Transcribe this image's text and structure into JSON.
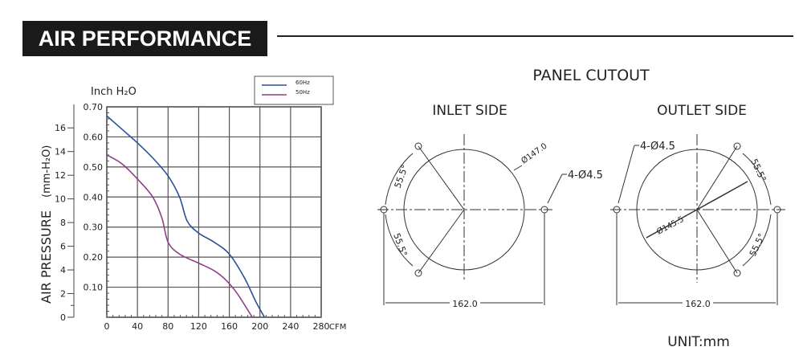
{
  "header": {
    "title": "AIR PERFORMANCE"
  },
  "chart_data": {
    "type": "line",
    "xlabel": "CFM",
    "ylabel": "AIR PRESSURE",
    "ylabel_unit": "(mm-H₂O)",
    "y2label": "Inch H₂O",
    "xlim": [
      0,
      280
    ],
    "ylim": [
      0,
      0.7
    ],
    "x_ticks": [
      "0",
      "40",
      "80",
      "120",
      "160",
      "200",
      "240",
      "280"
    ],
    "y_ticks": [
      "0.10",
      "0.20",
      "0.30",
      "0.40",
      "0.50",
      "0.60",
      "0.70"
    ],
    "mm_ticks": [
      "0",
      "2",
      "4",
      "6",
      "8",
      "10",
      "12",
      "14",
      "16"
    ],
    "grid": true,
    "legend_placement": "top-right",
    "series": [
      {
        "name": "60Hz",
        "color": "#2b4f9a",
        "x": [
          0,
          20,
          40,
          60,
          80,
          95,
          105,
          120,
          140,
          160,
          180,
          195,
          206
        ],
        "y": [
          0.67,
          0.625,
          0.58,
          0.53,
          0.47,
          0.4,
          0.32,
          0.28,
          0.25,
          0.21,
          0.13,
          0.05,
          0
        ]
      },
      {
        "name": "50Hz",
        "color": "#8e3f86",
        "x": [
          0,
          20,
          40,
          60,
          72,
          80,
          95,
          120,
          140,
          155,
          170,
          190
        ],
        "y": [
          0.54,
          0.51,
          0.46,
          0.4,
          0.33,
          0.25,
          0.21,
          0.18,
          0.155,
          0.125,
          0.08,
          0
        ]
      }
    ]
  },
  "cutout": {
    "title": "PANEL CUTOUT",
    "inlet": {
      "label": "INLET SIDE",
      "diameter": "Ø147.0",
      "holes": "4-Ø4.5",
      "angle1": "55.5°",
      "angle2": "55.5°",
      "spacing": "162.0"
    },
    "outlet": {
      "label": "OUTLET SIDE",
      "diameter": "Ø145.5",
      "holes": "4-Ø4.5",
      "angle1": "55.5°",
      "angle2": "55.5°",
      "spacing": "162.0"
    },
    "unit": "UNIT:mm"
  }
}
